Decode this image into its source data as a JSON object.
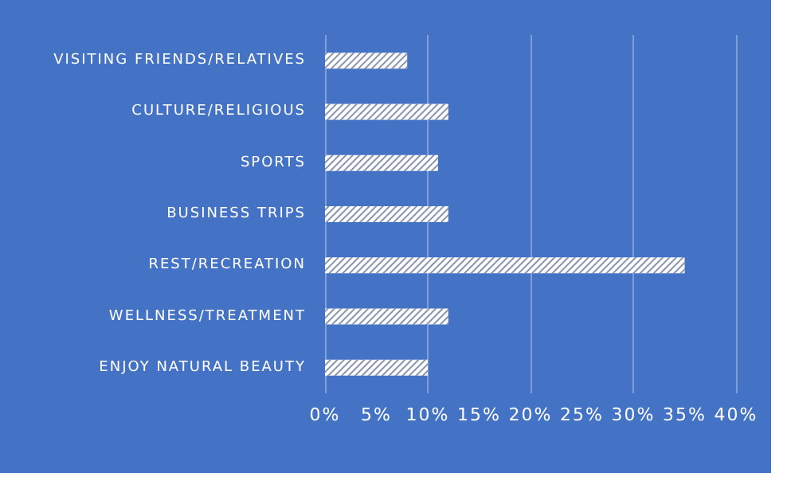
{
  "chart_data": {
    "type": "bar",
    "orientation": "horizontal",
    "categories": [
      "VISITING FRIENDS/RELATIVES",
      "CULTURE/RELIGIOUS",
      "SPORTS",
      "BUSINESS TRIPS",
      "REST/RECREATION",
      "WELLNESS/TREATMENT",
      "ENJOY NATURAL BEAUTY"
    ],
    "values": [
      8,
      12,
      11,
      12,
      35,
      12,
      10
    ],
    "color": "#ffffff",
    "xlim": [
      0,
      40
    ],
    "xticks": [
      {
        "value": 0,
        "label": "0%"
      },
      {
        "value": 5,
        "label": "5%"
      },
      {
        "value": 10,
        "label": "10%"
      },
      {
        "value": 15,
        "label": "15%"
      },
      {
        "value": 20,
        "label": "20%"
      },
      {
        "value": 25,
        "label": "25%"
      },
      {
        "value": 30,
        "label": "30%"
      },
      {
        "value": 35,
        "label": "35%"
      },
      {
        "value": 40,
        "label": "40%"
      }
    ],
    "grid": "x"
  }
}
